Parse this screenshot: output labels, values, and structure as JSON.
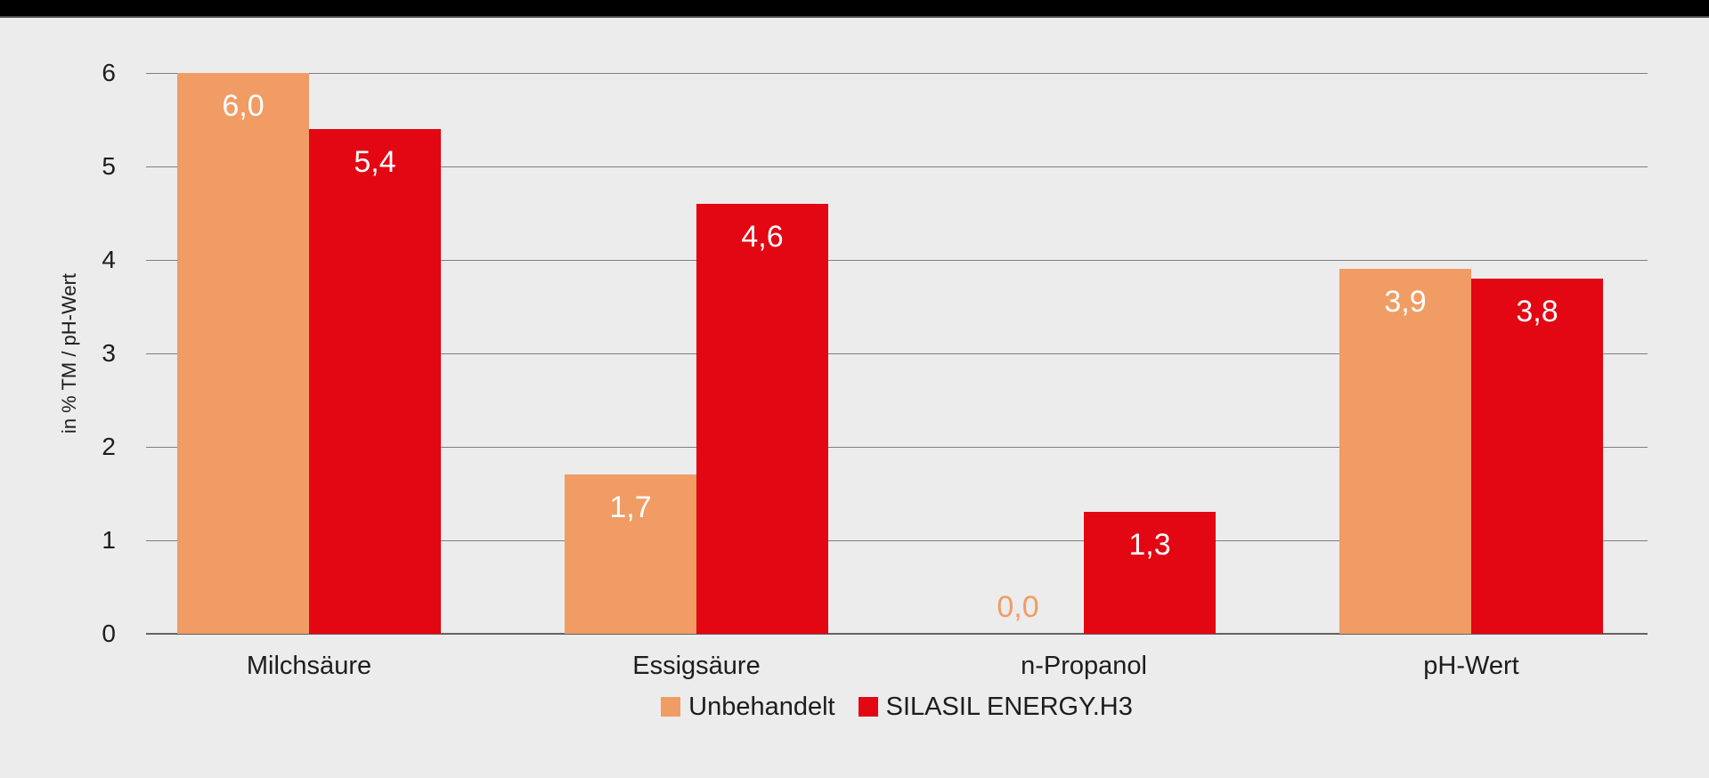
{
  "page": {
    "background_color": "#ececed",
    "top_bar_color": "#000000",
    "text_color": "#1d1d1b",
    "gridline_color": "#7f7f7f"
  },
  "chart_data": {
    "type": "bar",
    "title": "",
    "ylabel": "in % TM / pH-Wert",
    "xlabel": "",
    "categories": [
      "Milchsäure",
      "Essigsäure",
      "n-Propanol",
      "pH-Wert"
    ],
    "series": [
      {
        "name": "Unbehandelt",
        "color": "#f09c64",
        "values": [
          6.0,
          1.7,
          0.0,
          3.9
        ],
        "labels": [
          "6,0",
          "1,7",
          "0,0",
          "3,9"
        ]
      },
      {
        "name": "SILASIL ENERGY.H3",
        "color": "#e30613",
        "values": [
          5.4,
          4.6,
          1.3,
          3.8
        ],
        "labels": [
          "5,4",
          "4,6",
          "1,3",
          "3,8"
        ]
      }
    ],
    "yticks": [
      "0",
      "1",
      "2",
      "3",
      "4",
      "5",
      "6"
    ],
    "ylim": [
      0,
      6.3
    ],
    "grid": true,
    "legend_position": "bottom-center",
    "value_label_style": "inside-top, white; zero values shown in series color above baseline"
  }
}
